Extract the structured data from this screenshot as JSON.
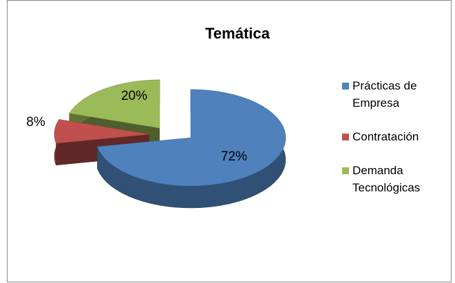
{
  "chart_data": {
    "type": "pie",
    "title": "Temática",
    "categories": [
      "Prácticas de Empresa",
      "Contratación",
      "Demanda Tecnológicas"
    ],
    "values": [
      72,
      8,
      20
    ],
    "value_labels": [
      "72%",
      "8%",
      "20%"
    ],
    "colors": [
      "#4f81bd",
      "#c0504d",
      "#9bbb59"
    ],
    "legend": "right"
  }
}
